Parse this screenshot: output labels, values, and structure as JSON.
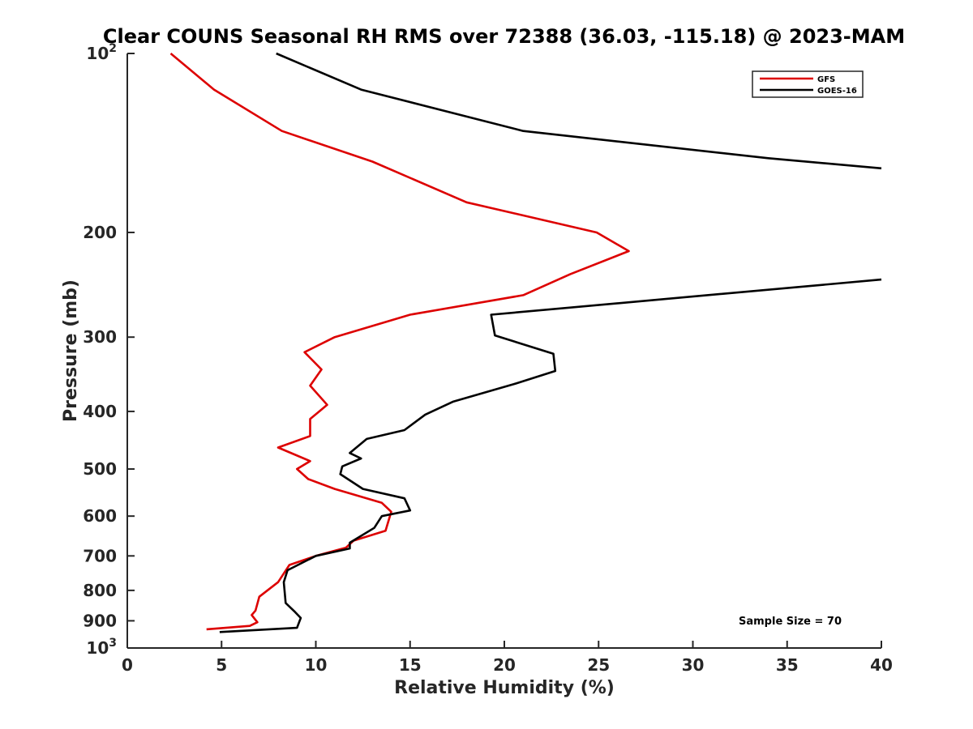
{
  "chart_data": {
    "type": "line",
    "title": "Clear COUNS Seasonal RH RMS over 72388 (36.03, -115.18) @ 2023-MAM",
    "xlabel": "Relative Humidity (%)",
    "ylabel": "Pressure (mb)",
    "xlim": [
      0,
      40
    ],
    "ylim": [
      100,
      1000
    ],
    "y_scale": "log",
    "y_reversed": true,
    "x_ticks": [
      0,
      5,
      10,
      15,
      20,
      25,
      30,
      35,
      40
    ],
    "x_tick_labels": [
      "0",
      "5",
      "10",
      "15",
      "20",
      "25",
      "30",
      "35",
      "40"
    ],
    "y_ticks": [
      100,
      200,
      300,
      400,
      500,
      600,
      700,
      800,
      900,
      1000
    ],
    "y_tick_labels": [
      {
        "base": "10",
        "exp": "2"
      },
      {
        "base": "200",
        "exp": ""
      },
      {
        "base": "300",
        "exp": ""
      },
      {
        "base": "400",
        "exp": ""
      },
      {
        "base": "500",
        "exp": ""
      },
      {
        "base": "600",
        "exp": ""
      },
      {
        "base": "700",
        "exp": ""
      },
      {
        "base": "800",
        "exp": ""
      },
      {
        "base": "900",
        "exp": ""
      },
      {
        "base": "10",
        "exp": "3"
      }
    ],
    "grid": false,
    "legend_position": "top-right",
    "annotation": "Sample Size = 70",
    "series": [
      {
        "name": "GFS",
        "color": "#dd0000",
        "points": [
          [
            2.3,
            100
          ],
          [
            4.6,
            115
          ],
          [
            8.2,
            135
          ],
          [
            13.0,
            152
          ],
          [
            18.0,
            178
          ],
          [
            24.9,
            200
          ],
          [
            26.6,
            215
          ],
          [
            23.5,
            235
          ],
          [
            21.0,
            255
          ],
          [
            15.0,
            275
          ],
          [
            11.0,
            300
          ],
          [
            9.4,
            318
          ],
          [
            10.3,
            340
          ],
          [
            9.7,
            362
          ],
          [
            10.6,
            390
          ],
          [
            9.7,
            412
          ],
          [
            9.7,
            440
          ],
          [
            8.0,
            460
          ],
          [
            9.7,
            485
          ],
          [
            9.0,
            500
          ],
          [
            9.6,
            520
          ],
          [
            11.0,
            540
          ],
          [
            13.5,
            570
          ],
          [
            14.0,
            590
          ],
          [
            13.7,
            635
          ],
          [
            12.0,
            660
          ],
          [
            11.6,
            678
          ],
          [
            10.0,
            700
          ],
          [
            8.6,
            725
          ],
          [
            8.0,
            775
          ],
          [
            7.0,
            820
          ],
          [
            6.8,
            865
          ],
          [
            6.6,
            880
          ],
          [
            6.9,
            905
          ],
          [
            6.5,
            918
          ],
          [
            4.2,
            930
          ]
        ]
      },
      {
        "name": "GOES-16",
        "color": "#000000",
        "points": [
          [
            7.9,
            100
          ],
          [
            12.4,
            115
          ],
          [
            21.0,
            135
          ],
          [
            34.0,
            150
          ],
          [
            40.0,
            156
          ],
          [
            null,
            null
          ],
          [
            40.0,
            240
          ],
          [
            19.3,
            275
          ],
          [
            19.5,
            298
          ],
          [
            22.6,
            320
          ],
          [
            22.7,
            342
          ],
          [
            20.5,
            360
          ],
          [
            17.3,
            385
          ],
          [
            15.8,
            405
          ],
          [
            14.7,
            430
          ],
          [
            12.7,
            445
          ],
          [
            11.8,
            470
          ],
          [
            12.4,
            480
          ],
          [
            11.4,
            495
          ],
          [
            11.3,
            510
          ],
          [
            12.5,
            540
          ],
          [
            14.7,
            560
          ],
          [
            15.0,
            587
          ],
          [
            13.5,
            600
          ],
          [
            13.1,
            628
          ],
          [
            11.8,
            665
          ],
          [
            11.8,
            680
          ],
          [
            10.0,
            700
          ],
          [
            8.5,
            740
          ],
          [
            8.3,
            775
          ],
          [
            8.4,
            840
          ],
          [
            8.9,
            870
          ],
          [
            9.2,
            890
          ],
          [
            9.0,
            925
          ],
          [
            4.9,
            940
          ]
        ]
      }
    ]
  }
}
